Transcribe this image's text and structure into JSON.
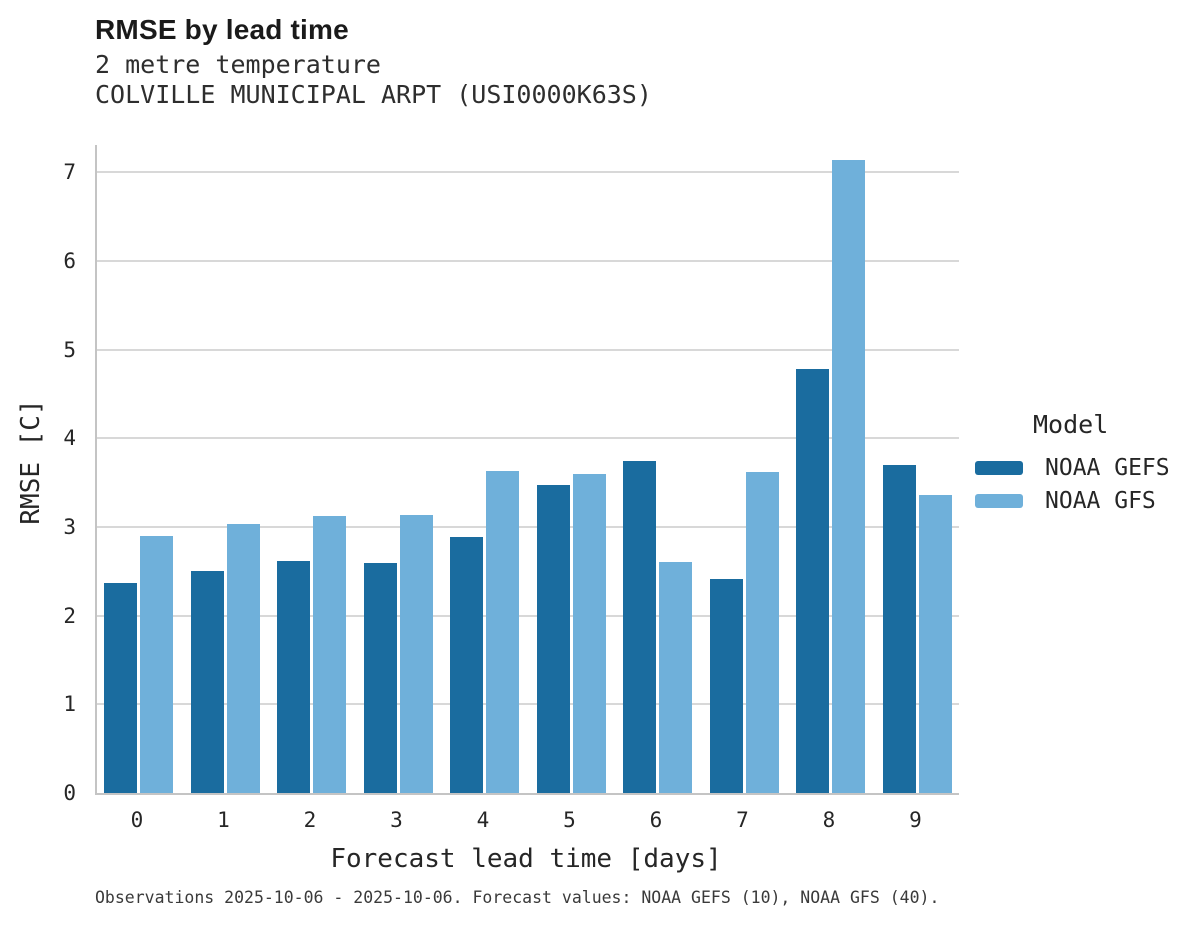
{
  "header": {
    "title": "RMSE by lead time",
    "subtitle1": "2 metre temperature",
    "subtitle2": "COLVILLE MUNICIPAL ARPT (USI0000K63S)"
  },
  "caption": "Observations 2025-10-06 - 2025-10-06. Forecast values: NOAA GEFS (10), NOAA GFS (40).",
  "legend": {
    "title": "Model",
    "items": [
      {
        "label": "NOAA GEFS",
        "color": "#1a6c9f"
      },
      {
        "label": "NOAA GFS",
        "color": "#6fb0da"
      }
    ]
  },
  "chart_data": {
    "type": "bar",
    "title": "RMSE by lead time",
    "subtitle": [
      "2 metre temperature",
      "COLVILLE MUNICIPAL ARPT (USI0000K63S)"
    ],
    "categories": [
      "0",
      "1",
      "2",
      "3",
      "4",
      "5",
      "6",
      "7",
      "8",
      "9"
    ],
    "series": [
      {
        "name": "NOAA GEFS",
        "color": "#1a6c9f",
        "values": [
          2.37,
          2.51,
          2.62,
          2.6,
          2.89,
          3.48,
          3.75,
          2.41,
          4.78,
          3.7
        ]
      },
      {
        "name": "NOAA GFS",
        "color": "#6fb0da",
        "values": [
          2.9,
          3.04,
          3.12,
          3.14,
          3.63,
          3.6,
          2.61,
          3.62,
          7.14,
          3.36
        ]
      }
    ],
    "xlabel": "Forecast lead time [days]",
    "ylabel": "RMSE [C]",
    "ylim": [
      0,
      7.31
    ],
    "yticks": [
      0,
      1,
      2,
      3,
      4,
      5,
      6,
      7
    ],
    "grid": true,
    "legend_title": "Model",
    "legend_position": "right"
  },
  "colors": {
    "gridline": "#d8d8d8",
    "spine": "#c4c4c4",
    "text": "#262626"
  }
}
